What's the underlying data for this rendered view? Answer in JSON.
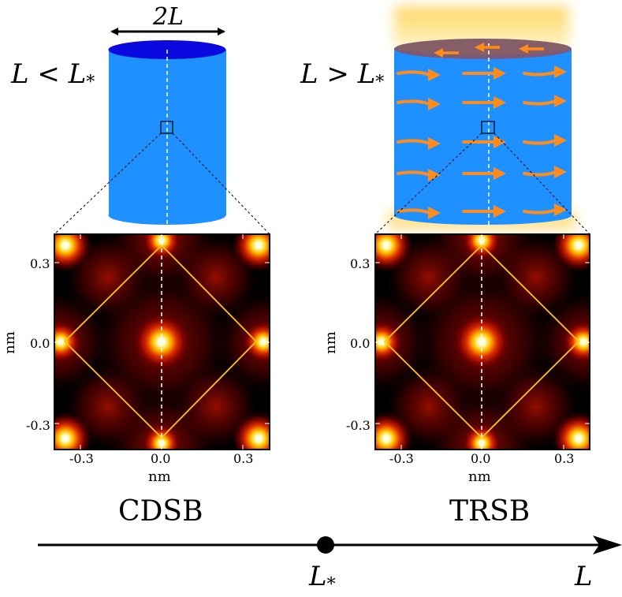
{
  "left_panel": {
    "condition_var": "L",
    "condition_op": " < ",
    "condition_sub": "*",
    "width_label": "2L",
    "phase_label": "CDSB"
  },
  "right_panel": {
    "condition_var": "L",
    "condition_op": " > ",
    "condition_sub": "*",
    "phase_label": "TRSB"
  },
  "plots": {
    "x_ticks": [
      "-0.3",
      "0.0",
      "0.3"
    ],
    "y_ticks": [
      "0.3",
      "0.0",
      "-0.3"
    ],
    "x_axis_label": "nm",
    "y_axis_label": "nm"
  },
  "phase_axis": {
    "critical_var": "L",
    "critical_sub": "*",
    "axis_label": "L"
  },
  "colors": {
    "cylinder_body": "#1e90ff",
    "cylinder_top": "#0a0ae0",
    "current_arrow": "#ff8c1a",
    "glow": "#ffd35a",
    "brillouin_zone": "#ffc41a"
  }
}
